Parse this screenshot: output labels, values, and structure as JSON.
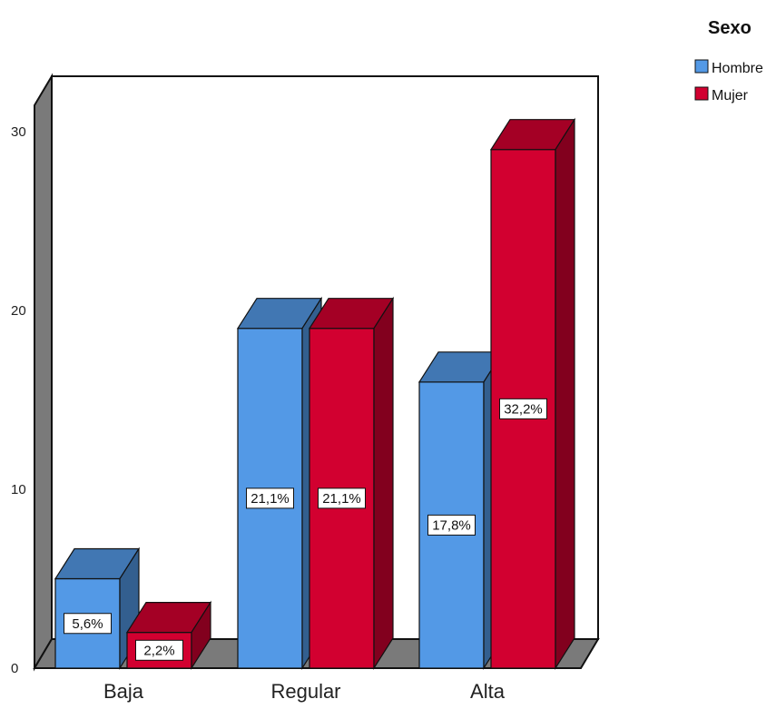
{
  "chart_data": {
    "type": "bar",
    "style": "3d-clustered",
    "categories": [
      "Baja",
      "Regular",
      "Alta"
    ],
    "series": [
      {
        "name": "Hombre",
        "color": "#5399E6",
        "values": [
          5.0,
          19.0,
          16.0
        ],
        "labels": [
          "5,6%",
          "21,1%",
          "17,8%"
        ]
      },
      {
        "name": "Mujer",
        "color": "#D20030",
        "values": [
          2.0,
          19.0,
          29.0
        ],
        "labels": [
          "2,2%",
          "21,1%",
          "32,2%"
        ]
      }
    ],
    "yticks": [
      "0",
      "10",
      "20",
      "30"
    ],
    "ylim": [
      0,
      30
    ],
    "legend": {
      "title": "Sexo",
      "position": "top-right"
    },
    "grid": false
  }
}
